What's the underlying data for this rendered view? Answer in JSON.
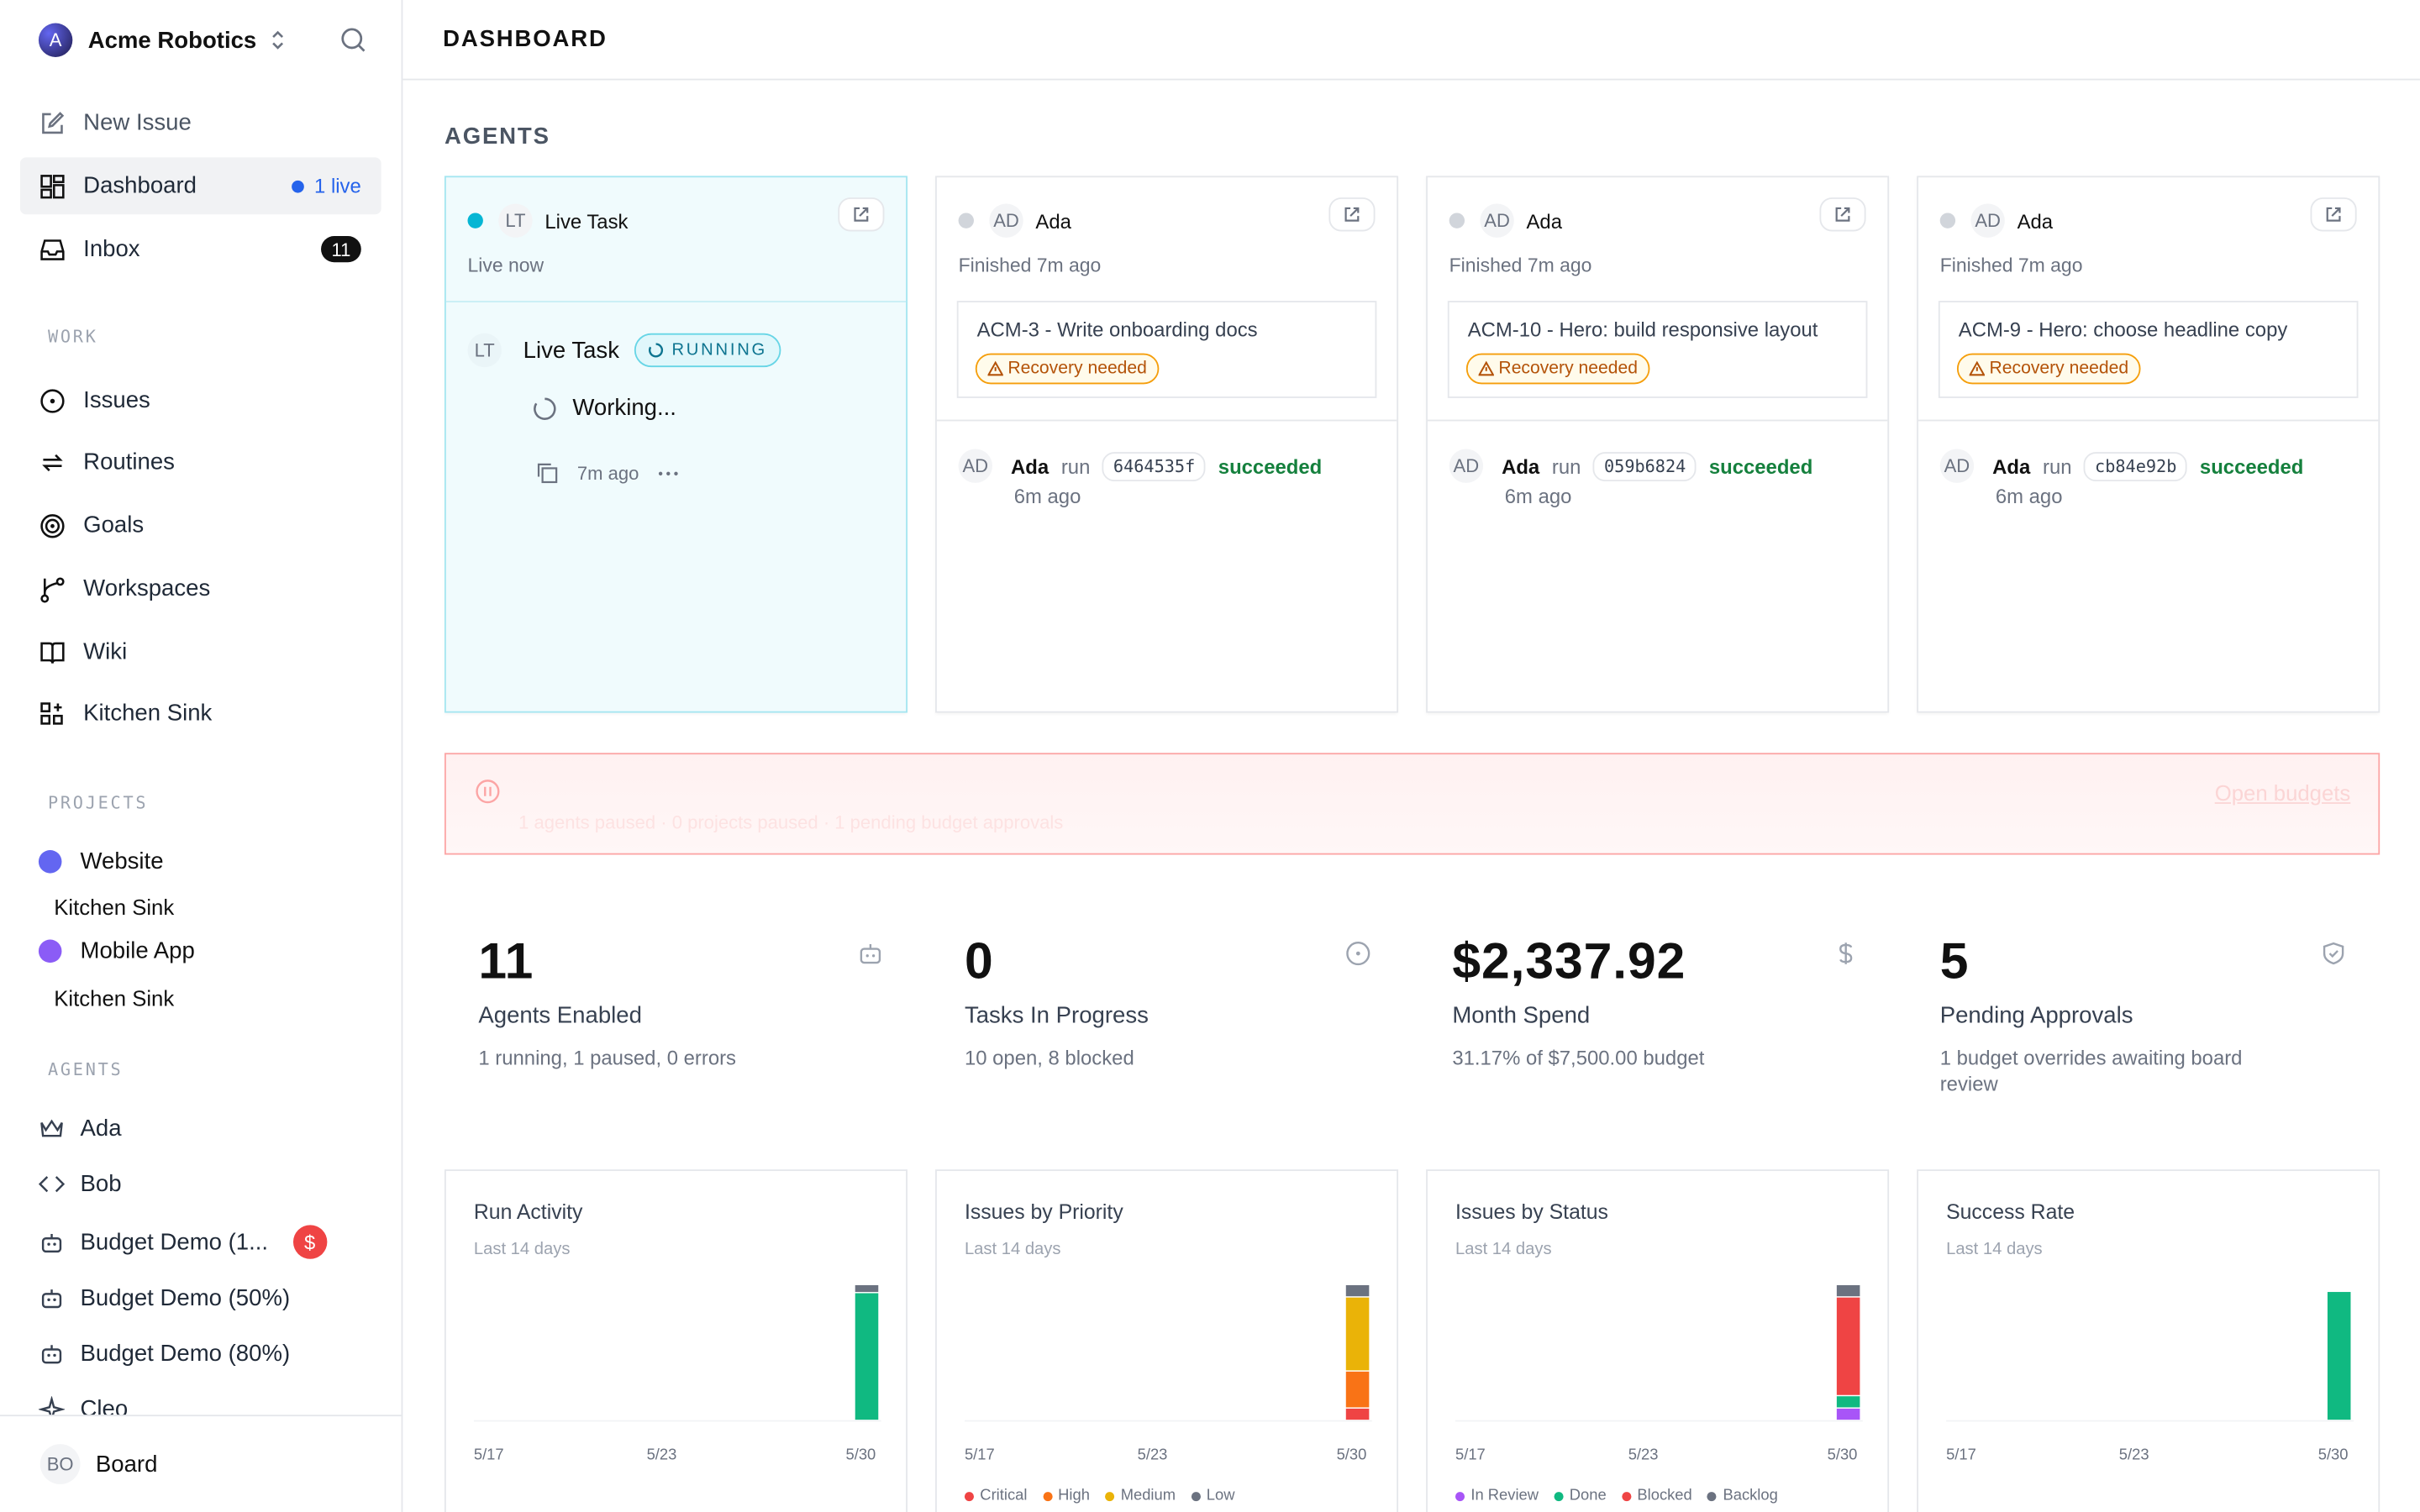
{
  "org": {
    "name": "Acme Robotics",
    "initial": "A"
  },
  "nav": {
    "new_issue": "New Issue",
    "dashboard": "Dashboard",
    "dashboard_live": "1 live",
    "inbox": "Inbox",
    "inbox_count": "11"
  },
  "work": {
    "label": "WORK",
    "items": [
      "Issues",
      "Routines",
      "Goals",
      "Workspaces",
      "Wiki",
      "Kitchen Sink"
    ]
  },
  "projects": {
    "label": "PROJECTS",
    "items": [
      {
        "name": "Website",
        "color": "#6366f1",
        "sub": "Kitchen Sink"
      },
      {
        "name": "Mobile App",
        "color": "#8b5cf6",
        "sub": "Kitchen Sink"
      }
    ]
  },
  "agents_nav": {
    "label": "AGENTS",
    "items": [
      "Ada",
      "Bob",
      "Budget Demo (1...",
      "Budget Demo (50%)",
      "Budget Demo (80%)",
      "Cleo"
    ],
    "budget_badge": "$"
  },
  "footer": {
    "initials": "BO",
    "name": "Board"
  },
  "page": {
    "title": "DASHBOARD",
    "agents_title": "AGENTS"
  },
  "live_card": {
    "initials": "LT",
    "name": "Live Task",
    "status": "Live now",
    "task_name": "Live Task",
    "badge": "RUNNING",
    "working": "Working...",
    "time": "7m ago"
  },
  "agent_cards": [
    {
      "initials": "AD",
      "name": "Ada",
      "status": "Finished 7m ago",
      "issue": "ACM-3 - Write onboarding docs",
      "recovery": "Recovery needed",
      "run_agent": "Ada",
      "run_word": "run",
      "run_id": "6464535f",
      "run_status": "succeeded",
      "run_time": "6m ago"
    },
    {
      "initials": "AD",
      "name": "Ada",
      "status": "Finished 7m ago",
      "issue": "ACM-10 - Hero: build responsive layout",
      "recovery": "Recovery needed",
      "run_agent": "Ada",
      "run_word": "run",
      "run_id": "059b6824",
      "run_status": "succeeded",
      "run_time": "6m ago"
    },
    {
      "initials": "AD",
      "name": "Ada",
      "status": "Finished 7m ago",
      "issue": "ACM-9 - Hero: choose headline copy",
      "recovery": "Recovery needed",
      "run_agent": "Ada",
      "run_word": "run",
      "run_id": "cb84e92b",
      "run_status": "succeeded",
      "run_time": "6m ago"
    }
  ],
  "alert": {
    "text": "1 agents paused · 0 projects paused · 1 pending budget approvals",
    "link": "Open budgets"
  },
  "stats": [
    {
      "value": "11",
      "label": "Agents Enabled",
      "desc": "1 running, 1 paused, 0 errors",
      "icon": "bot-icon"
    },
    {
      "value": "0",
      "label": "Tasks In Progress",
      "desc": "10 open, 8 blocked",
      "icon": "circle-dot-icon"
    },
    {
      "value": "$2,337.92",
      "label": "Month Spend",
      "desc": "31.17% of $7,500.00 budget",
      "icon": "dollar-icon"
    },
    {
      "value": "5",
      "label": "Pending Approvals",
      "desc": "1 budget overrides awaiting board review",
      "icon": "shield-check-icon"
    }
  ],
  "chart_data": [
    {
      "type": "bar",
      "title": "Run Activity",
      "subtitle": "Last 14 days",
      "x_ticks": [
        "5/17",
        "5/23",
        "5/30"
      ],
      "categories": [
        "5/17",
        "5/18",
        "5/19",
        "5/20",
        "5/21",
        "5/22",
        "5/23",
        "5/24",
        "5/25",
        "5/26",
        "5/27",
        "5/28",
        "5/29",
        "5/30"
      ],
      "series": [
        {
          "values": [
            0,
            0,
            0,
            0,
            0,
            0,
            0,
            0,
            0,
            0,
            0,
            0,
            0,
            16
          ],
          "color": "#10b981"
        },
        {
          "values": [
            0,
            0,
            0,
            0,
            0,
            0,
            0,
            0,
            0,
            0,
            0,
            0,
            0,
            1
          ],
          "color": "#6b7280"
        }
      ]
    },
    {
      "type": "bar",
      "title": "Issues by Priority",
      "subtitle": "Last 14 days",
      "x_ticks": [
        "5/17",
        "5/23",
        "5/30"
      ],
      "categories": [
        "5/17",
        "5/18",
        "5/19",
        "5/20",
        "5/21",
        "5/22",
        "5/23",
        "5/24",
        "5/25",
        "5/26",
        "5/27",
        "5/28",
        "5/29",
        "5/30"
      ],
      "series": [
        {
          "name": "Critical",
          "values": [
            0,
            0,
            0,
            0,
            0,
            0,
            0,
            0,
            0,
            0,
            0,
            0,
            0,
            1
          ],
          "color": "#ef4444"
        },
        {
          "name": "High",
          "values": [
            0,
            0,
            0,
            0,
            0,
            0,
            0,
            0,
            0,
            0,
            0,
            0,
            0,
            3
          ],
          "color": "#f97316"
        },
        {
          "name": "Medium",
          "values": [
            0,
            0,
            0,
            0,
            0,
            0,
            0,
            0,
            0,
            0,
            0,
            0,
            0,
            6
          ],
          "color": "#eab308"
        },
        {
          "name": "Low",
          "values": [
            0,
            0,
            0,
            0,
            0,
            0,
            0,
            0,
            0,
            0,
            0,
            0,
            0,
            1
          ],
          "color": "#6b7280"
        }
      ]
    },
    {
      "type": "bar",
      "title": "Issues by Status",
      "subtitle": "Last 14 days",
      "x_ticks": [
        "5/17",
        "5/23",
        "5/30"
      ],
      "categories": [
        "5/17",
        "5/18",
        "5/19",
        "5/20",
        "5/21",
        "5/22",
        "5/23",
        "5/24",
        "5/25",
        "5/26",
        "5/27",
        "5/28",
        "5/29",
        "5/30"
      ],
      "series": [
        {
          "name": "In Review",
          "values": [
            0,
            0,
            0,
            0,
            0,
            0,
            0,
            0,
            0,
            0,
            0,
            0,
            0,
            1
          ],
          "color": "#a855f7"
        },
        {
          "name": "Done",
          "values": [
            0,
            0,
            0,
            0,
            0,
            0,
            0,
            0,
            0,
            0,
            0,
            0,
            0,
            1
          ],
          "color": "#10b981"
        },
        {
          "name": "Blocked",
          "values": [
            0,
            0,
            0,
            0,
            0,
            0,
            0,
            0,
            0,
            0,
            0,
            0,
            0,
            8
          ],
          "color": "#ef4444"
        },
        {
          "name": "Backlog",
          "values": [
            0,
            0,
            0,
            0,
            0,
            0,
            0,
            0,
            0,
            0,
            0,
            0,
            0,
            1
          ],
          "color": "#6b7280"
        }
      ]
    },
    {
      "type": "bar",
      "title": "Success Rate",
      "subtitle": "Last 14 days",
      "x_ticks": [
        "5/17",
        "5/23",
        "5/30"
      ],
      "categories": [
        "5/17",
        "5/18",
        "5/19",
        "5/20",
        "5/21",
        "5/22",
        "5/23",
        "5/24",
        "5/25",
        "5/26",
        "5/27",
        "5/28",
        "5/29",
        "5/30"
      ],
      "ylim": [
        0,
        100
      ],
      "series": [
        {
          "values": [
            0,
            0,
            0,
            0,
            0,
            0,
            0,
            0,
            0,
            0,
            0,
            0,
            0,
            95
          ],
          "color": "#10b981"
        }
      ]
    }
  ]
}
